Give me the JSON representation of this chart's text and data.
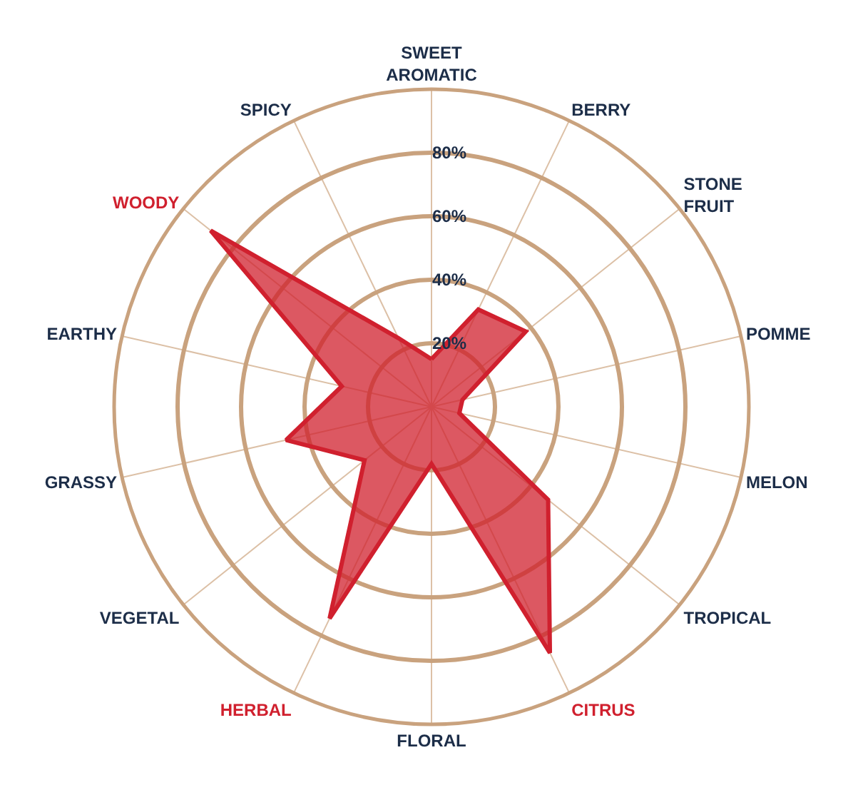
{
  "chart_data": {
    "type": "radar",
    "categories": [
      "SWEET\nAROMATIC",
      "BERRY",
      "STONE\nFRUIT",
      "POMME",
      "MELON",
      "TROPICAL",
      "CITRUS",
      "FLORAL",
      "HERBAL",
      "VEGETAL",
      "GRASSY",
      "EARTHY",
      "WOODY",
      "SPICY"
    ],
    "colors": [
      "#1c2d48",
      "#1c2d48",
      "#1c2d48",
      "#1c2d48",
      "#1c2d48",
      "#1c2d48",
      "#d0202e",
      "#1c2d48",
      "#d0202e",
      "#1c2d48",
      "#1c2d48",
      "#1c2d48",
      "#d0202e",
      "#1c2d48"
    ],
    "series": [
      {
        "color": "#d0202e",
        "values": [
          15,
          34,
          38,
          10,
          9,
          47,
          86,
          18,
          74,
          27,
          47,
          29,
          89,
          24
        ]
      }
    ],
    "ylim": [
      0,
      100
    ],
    "yticks": [
      {
        "value": 20,
        "label": "20%"
      },
      {
        "value": 40,
        "label": "40%"
      },
      {
        "value": 60,
        "label": "60%"
      },
      {
        "value": 80,
        "label": "80%"
      }
    ],
    "grid": true,
    "marker": "none"
  }
}
